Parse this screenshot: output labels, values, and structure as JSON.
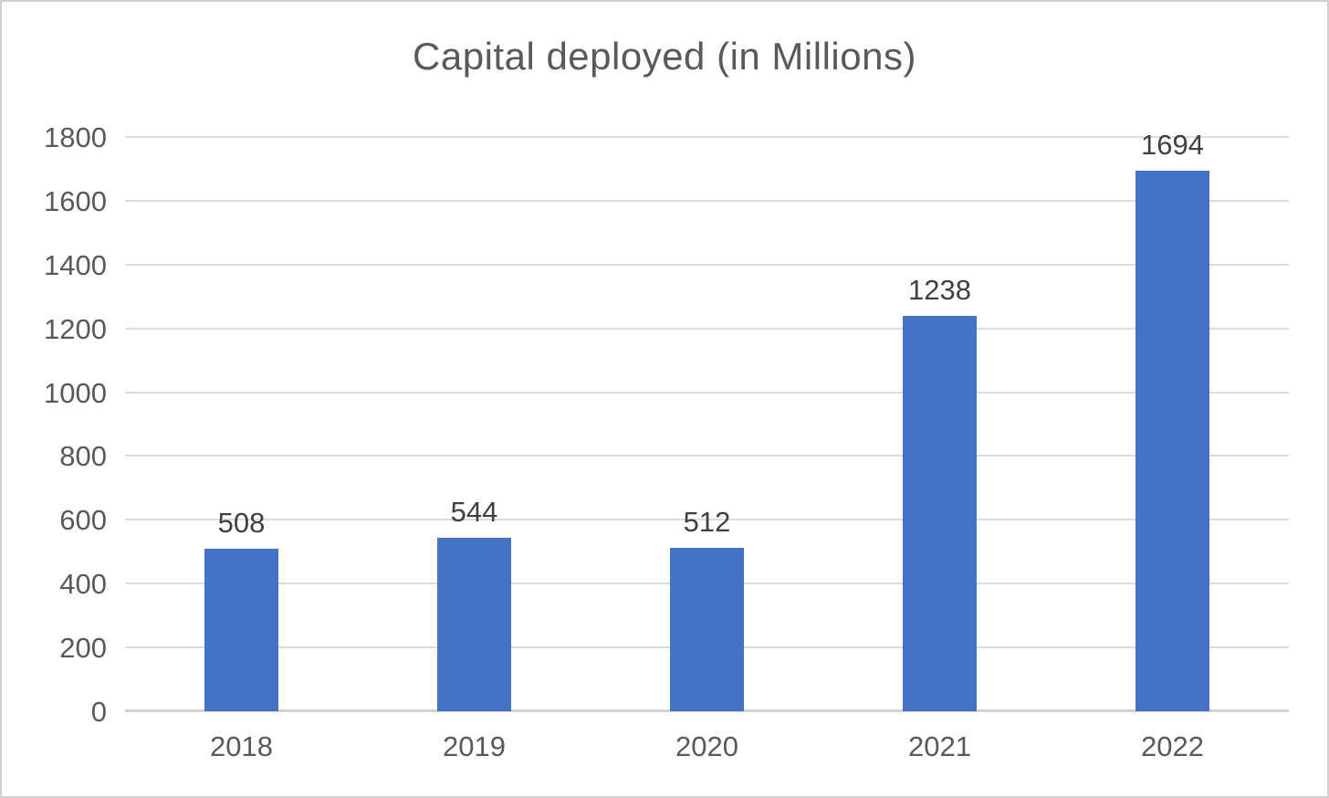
{
  "chart_data": {
    "type": "bar",
    "title": "Capital deployed (in Millions)",
    "categories": [
      "2018",
      "2019",
      "2020",
      "2021",
      "2022"
    ],
    "values": [
      508,
      544,
      512,
      1238,
      1694
    ],
    "data_labels": [
      "508",
      "544",
      "512",
      "1238",
      "1694"
    ],
    "xlabel": "",
    "ylabel": "",
    "ylim": [
      0,
      1800
    ],
    "ytick_step": 200,
    "yticks": [
      0,
      200,
      400,
      600,
      800,
      1000,
      1200,
      1400,
      1600,
      1800
    ],
    "grid": true,
    "legend": "none",
    "colors": {
      "bar": "#4472C4",
      "title_text": "#595959",
      "axis_tick_text": "#595959",
      "data_label_text": "#404040",
      "gridline": "#dcdcdc",
      "axis_line": "#d2d2d2",
      "frame_border": "#d0d0d0",
      "background": "#ffffff"
    }
  }
}
